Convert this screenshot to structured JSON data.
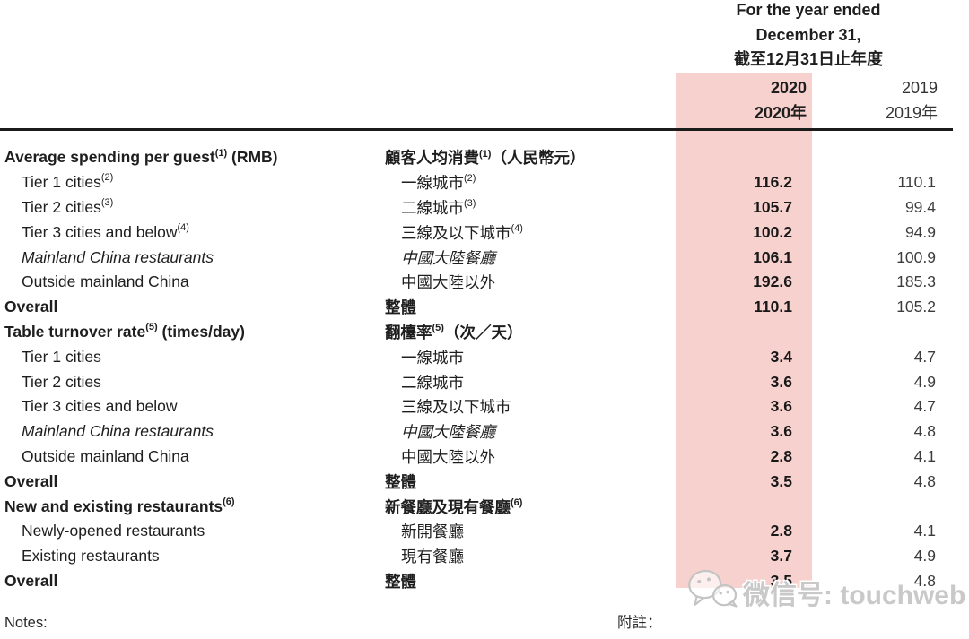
{
  "header": {
    "period_lines": [
      "For the year ended",
      "December 31,",
      "截至12月31日止年度"
    ],
    "col_2020": {
      "line1": "2020",
      "line2": "2020年"
    },
    "col_2019": {
      "line1": "2019",
      "line2": "2019年"
    }
  },
  "table": {
    "rows": [
      {
        "type": "section",
        "en": "Average spending per guest",
        "en_sup": "(1)",
        "en_tail": " (RMB)",
        "zh": "顧客人均消費",
        "zh_sup": "(1)",
        "zh_tail": "（人民幣元）",
        "v2020": "",
        "v2019": ""
      },
      {
        "type": "item",
        "en": "Tier 1 cities",
        "en_sup": "(2)",
        "zh": "一線城市",
        "zh_sup": "(2)",
        "v2020": "116.2",
        "v2019": "110.1"
      },
      {
        "type": "item",
        "en": "Tier 2 cities",
        "en_sup": "(3)",
        "zh": "二線城市",
        "zh_sup": "(3)",
        "v2020": "105.7",
        "v2019": "99.4"
      },
      {
        "type": "item",
        "en": "Tier 3 cities and below",
        "en_sup": "(4)",
        "zh": "三線及以下城市",
        "zh_sup": "(4)",
        "v2020": "100.2",
        "v2019": "94.9"
      },
      {
        "type": "item-italic",
        "en": "Mainland China restaurants",
        "zh": "中國大陸餐廳",
        "v2020": "106.1",
        "v2019": "100.9"
      },
      {
        "type": "item",
        "en": "Outside mainland China",
        "zh": "中國大陸以外",
        "v2020": "192.6",
        "v2019": "185.3"
      },
      {
        "type": "overall",
        "en": "Overall",
        "zh": "整體",
        "v2020": "110.1",
        "v2019": "105.2"
      },
      {
        "type": "section",
        "en": "Table turnover rate",
        "en_sup": "(5)",
        "en_tail": " (times/day)",
        "zh": "翻檯率",
        "zh_sup": "(5)",
        "zh_tail": "（次／天）",
        "v2020": "",
        "v2019": ""
      },
      {
        "type": "item",
        "en": "Tier 1 cities",
        "zh": "一線城市",
        "v2020": "3.4",
        "v2019": "4.7"
      },
      {
        "type": "item",
        "en": "Tier 2 cities",
        "zh": "二線城市",
        "v2020": "3.6",
        "v2019": "4.9"
      },
      {
        "type": "item",
        "en": "Tier 3 cities and below",
        "zh": "三線及以下城市",
        "v2020": "3.6",
        "v2019": "4.7"
      },
      {
        "type": "item-italic",
        "en": "Mainland China restaurants",
        "zh": "中國大陸餐廳",
        "v2020": "3.6",
        "v2019": "4.8"
      },
      {
        "type": "item",
        "en": "Outside mainland China",
        "zh": "中國大陸以外",
        "v2020": "2.8",
        "v2019": "4.1"
      },
      {
        "type": "overall",
        "en": "Overall",
        "zh": "整體",
        "v2020": "3.5",
        "v2019": "4.8"
      },
      {
        "type": "section",
        "en": "New and existing restaurants",
        "en_sup": "(6)",
        "zh": "新餐廳及現有餐廳",
        "zh_sup": "(6)",
        "v2020": "",
        "v2019": ""
      },
      {
        "type": "item",
        "en": "Newly-opened restaurants",
        "zh": "新開餐廳",
        "v2020": "2.8",
        "v2019": "4.1"
      },
      {
        "type": "item",
        "en": "Existing restaurants",
        "zh": "現有餐廳",
        "v2020": "3.7",
        "v2019": "4.9"
      },
      {
        "type": "overall",
        "en": "Overall",
        "zh": "整體",
        "v2020": "3.5",
        "v2019": "4.8"
      }
    ]
  },
  "footer": {
    "notes_en": "Notes:",
    "notes_zh": "附註："
  },
  "watermark": {
    "icon": "wechat-icon",
    "text": "微信号: touchweb"
  },
  "colors": {
    "highlight": "#f7d1ce",
    "rule": "#1b1b1b",
    "text": "#1e1e1e",
    "watermark_gray": "#c9c9c9"
  }
}
